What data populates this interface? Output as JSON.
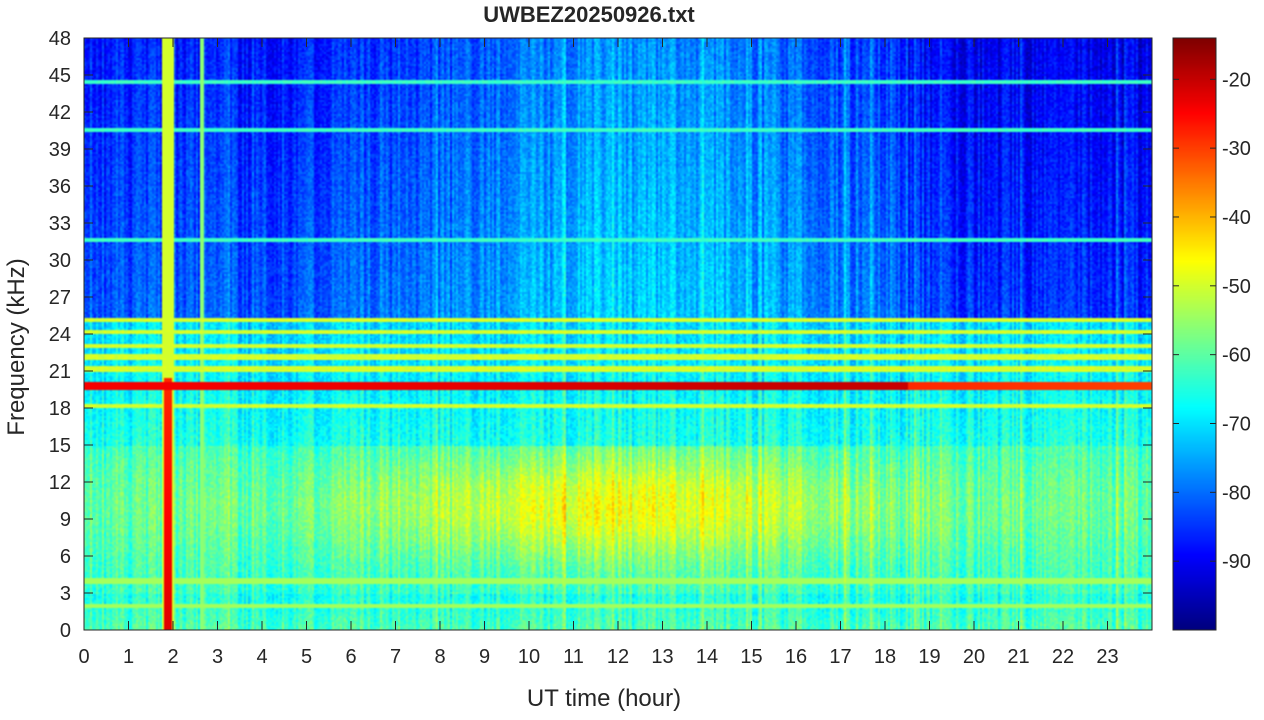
{
  "chart_data": {
    "type": "heatmap",
    "title": "UWBEZ20250926.txt",
    "xlabel": "UT time (hour)",
    "ylabel": "Frequency (kHz)",
    "xlim": [
      0,
      24
    ],
    "ylim": [
      0,
      48
    ],
    "x_ticks": [
      "0",
      "1",
      "2",
      "3",
      "4",
      "5",
      "6",
      "7",
      "8",
      "9",
      "10",
      "11",
      "12",
      "13",
      "14",
      "15",
      "16",
      "17",
      "18",
      "19",
      "20",
      "21",
      "22",
      "23"
    ],
    "y_ticks": [
      "0",
      "3",
      "6",
      "9",
      "12",
      "15",
      "18",
      "21",
      "24",
      "27",
      "30",
      "33",
      "36",
      "39",
      "42",
      "45",
      "48"
    ],
    "colormap": "jet",
    "clim": [
      -100,
      -14
    ],
    "colorbar_ticks": [
      "-20",
      "-30",
      "-40",
      "-50",
      "-60",
      "-70",
      "-80",
      "-90"
    ],
    "features": {
      "strong_horizontal_line_khz": 19.8,
      "secondary_horizontal_lines_khz": [
        18.2,
        21.2,
        22.1,
        23.0,
        24.2,
        25.1,
        31.6,
        40.5,
        44.4
      ],
      "vertical_broadband_burst_hours": [
        1.9,
        2.65
      ],
      "enhanced_background_band_khz": [
        3,
        15
      ],
      "enhanced_background_peak_hour": 12
    }
  }
}
